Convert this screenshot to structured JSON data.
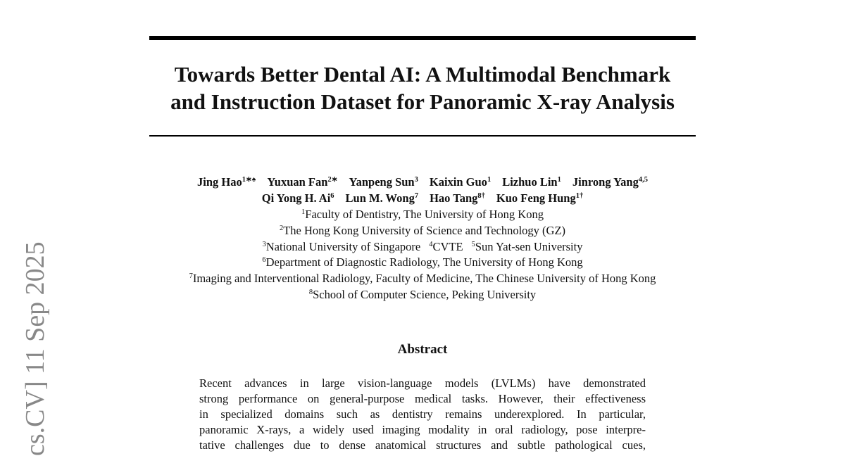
{
  "stamp": "cs.CV]  11 Sep 2025",
  "title": [
    "Towards Better Dental AI: A Multimodal Benchmark",
    "and Instruction Dataset for Panoramic X-ray Analysis"
  ],
  "authors": [
    [
      {
        "name": "Jing Hao",
        "sup": "1∗♠"
      },
      {
        "name": "Yuxuan Fan",
        "sup": "2∗"
      },
      {
        "name": "Yanpeng Sun",
        "sup": "3"
      },
      {
        "name": "Kaixin Guo",
        "sup": "1"
      },
      {
        "name": "Lizhuo Lin",
        "sup": "1"
      },
      {
        "name": "Jinrong Yang",
        "sup": "4,5"
      }
    ],
    [
      {
        "name": "Qi Yong H. Ai",
        "sup": "6"
      },
      {
        "name": "Lun M. Wong",
        "sup": "7"
      },
      {
        "name": "Hao Tang",
        "sup": "8†"
      },
      {
        "name": "Kuo Feng Hung",
        "sup": "1†"
      }
    ]
  ],
  "affiliations": [
    [
      {
        "sup": "1",
        "text": "Faculty of Dentistry, The University of Hong Kong"
      }
    ],
    [
      {
        "sup": "2",
        "text": "The Hong Kong University of Science and Technology (GZ)"
      }
    ],
    [
      {
        "sup": "3",
        "text": "National University of Singapore"
      },
      {
        "sup": "4",
        "text": "CVTE"
      },
      {
        "sup": "5",
        "text": "Sun Yat-sen University"
      }
    ],
    [
      {
        "sup": "6",
        "text": "Department of Diagnostic Radiology, The University of Hong Kong"
      }
    ],
    [
      {
        "sup": "7",
        "text": "Imaging and Interventional Radiology, Faculty of Medicine, The Chinese University of Hong Kong"
      }
    ],
    [
      {
        "sup": "8",
        "text": "School of Computer Science, Peking University"
      }
    ]
  ],
  "abstract": {
    "heading": "Abstract",
    "lines": [
      "Recent advances in large vision-language models (LVLMs) have demonstrated",
      "strong performance on general-purpose medical tasks. However, their effectiveness",
      "in specialized domains such as dentistry remains underexplored.  In particular,",
      "panoramic X-rays, a widely used imaging modality in oral radiology, pose interpre-",
      "tative challenges due to dense anatomical structures and subtle pathological cues,"
    ]
  }
}
